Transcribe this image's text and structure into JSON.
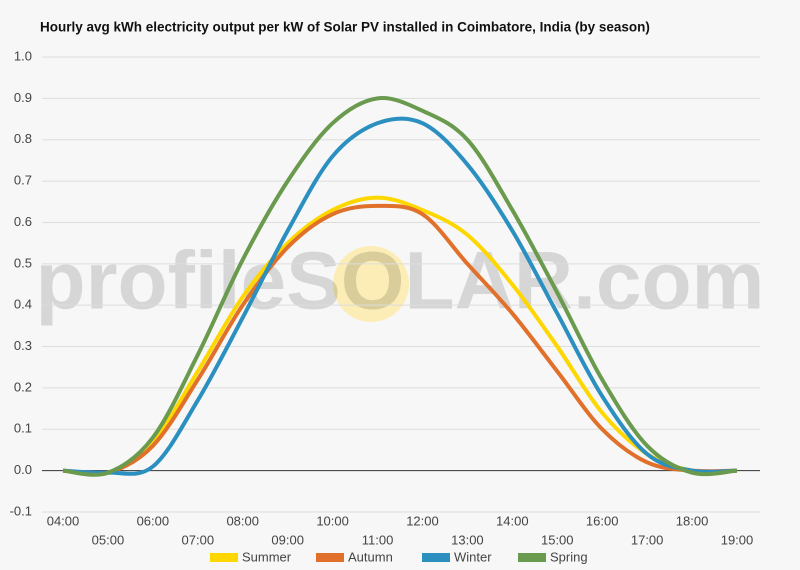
{
  "chart_data": {
    "type": "line",
    "title": "Hourly avg kWh electricity output per kW of Solar PV installed in Coimbatore, India (by season)",
    "watermark": "profileSOLAR.com",
    "categories": [
      "04:00",
      "05:00",
      "06:00",
      "07:00",
      "08:00",
      "09:00",
      "10:00",
      "11:00",
      "12:00",
      "13:00",
      "14:00",
      "15:00",
      "16:00",
      "17:00",
      "18:00",
      "19:00"
    ],
    "series": [
      {
        "name": "Summer",
        "color": "#ffd700",
        "values": [
          0,
          -0.005,
          0.07,
          0.24,
          0.42,
          0.55,
          0.63,
          0.66,
          0.63,
          0.57,
          0.45,
          0.3,
          0.14,
          0.04,
          0,
          0
        ]
      },
      {
        "name": "Autumn",
        "color": "#e0702a",
        "values": [
          0,
          -0.005,
          0.06,
          0.22,
          0.4,
          0.54,
          0.62,
          0.64,
          0.62,
          0.5,
          0.38,
          0.24,
          0.1,
          0.02,
          0,
          0
        ]
      },
      {
        "name": "Winter",
        "color": "#2b8fc0",
        "values": [
          0,
          -0.005,
          0.01,
          0.17,
          0.37,
          0.58,
          0.76,
          0.84,
          0.84,
          0.74,
          0.58,
          0.38,
          0.18,
          0.04,
          0,
          0
        ]
      },
      {
        "name": "Spring",
        "color": "#6a9a4e",
        "values": [
          0,
          -0.005,
          0.08,
          0.28,
          0.51,
          0.7,
          0.84,
          0.9,
          0.87,
          0.8,
          0.63,
          0.43,
          0.22,
          0.06,
          -0.005,
          0
        ]
      }
    ],
    "ylim": [
      -0.1,
      1.0
    ],
    "yticks": [
      {
        "value": -0.1,
        "label": "-0.1"
      },
      {
        "value": 0,
        "label": "0.0"
      },
      0.1,
      0.2,
      0.3,
      0.4,
      0.5,
      0.6,
      0.7,
      0.8,
      0.9,
      {
        "value": 1,
        "label": "1.0"
      }
    ],
    "grid": true,
    "legend": "bottom"
  }
}
